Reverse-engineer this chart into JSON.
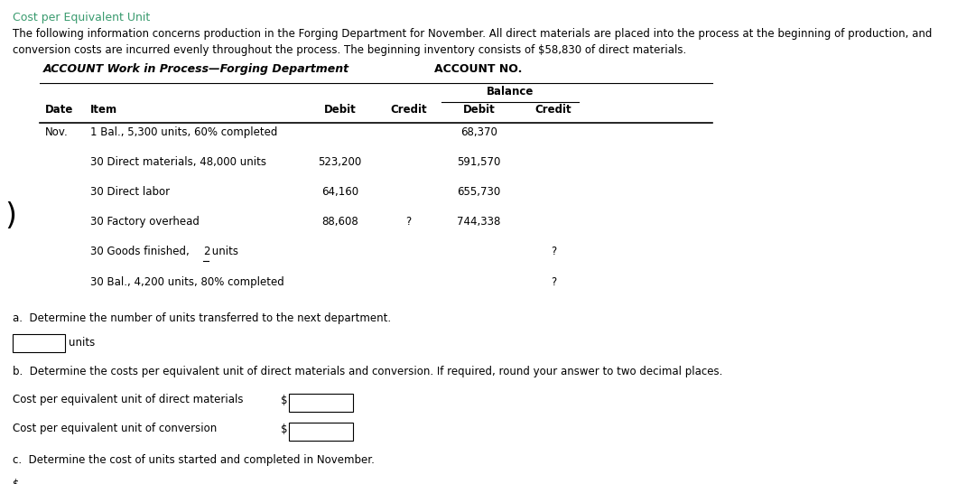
{
  "title": "Cost per Equivalent Unit",
  "para1": "The following information concerns production in the Forging Department for November. All direct materials are placed into the process at the beginning of production, and",
  "para2": "conversion costs are incurred evenly throughout the process. The beginning inventory consists of $58,830 of direct materials.",
  "account_title": "ACCOUNT Work in Process—Forging Department",
  "account_no": "ACCOUNT NO.",
  "rows": [
    [
      "Nov.",
      "1 Bal., 5,300 units, 60% completed",
      "",
      "",
      "68,370",
      ""
    ],
    [
      "",
      "30 Direct materials, 48,000 units",
      "523,200",
      "",
      "591,570",
      ""
    ],
    [
      "",
      "30 Direct labor",
      "64,160",
      "",
      "655,730",
      ""
    ],
    [
      "",
      "30 Factory overhead",
      "88,608",
      "?",
      "744,338",
      ""
    ],
    [
      "",
      "30 Goods finished, 2 units",
      "",
      "",
      "",
      "?"
    ],
    [
      "",
      "30 Bal., 4,200 units, 80% completed",
      "",
      "",
      "",
      "?"
    ]
  ],
  "section_a": "a.  Determine the number of units transferred to the next department.",
  "section_b": "b.  Determine the costs per equivalent unit of direct materials and conversion. If required, round your answer to two decimal places.",
  "label_dm": "Cost per equivalent unit of direct materials",
  "label_conv": "Cost per equivalent unit of conversion",
  "section_c": "c.  Determine the cost of units started and completed in November.",
  "title_color": "#3a9b6f",
  "text_color": "#000000",
  "bg_color": "#ffffff"
}
